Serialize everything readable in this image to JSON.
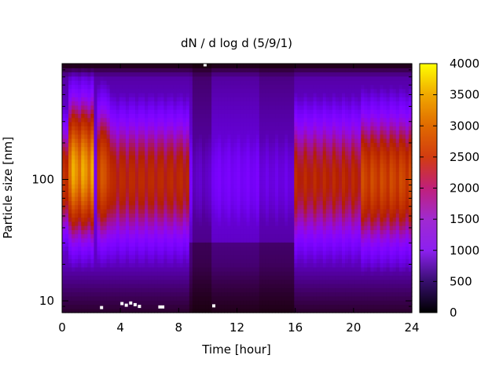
{
  "chart_data": {
    "type": "heatmap",
    "title": "dN / d log d (5/9/1)",
    "xlabel": "Time [hour]",
    "ylabel": "Particle size [nm]",
    "x_range": [
      0,
      24
    ],
    "x_ticks": [
      0,
      4,
      8,
      12,
      16,
      20,
      24
    ],
    "y_scale": "log",
    "y_range": [
      8,
      900
    ],
    "y_ticks": [
      10,
      100
    ],
    "color_range": [
      0,
      4000
    ],
    "color_ticks": [
      0,
      500,
      1000,
      1500,
      2000,
      2500,
      3000,
      3500,
      4000
    ],
    "colormap": "black-purple-red-orange-yellow (gnuplot default)",
    "grid": false,
    "features": [
      {
        "time_range": [
          0.4,
          2.2
        ],
        "peak_size_nm": 120,
        "peak_value": 3600
      },
      {
        "time_range": [
          2.3,
          3.2
        ],
        "peak_size_nm": 110,
        "peak_value": 2900
      },
      {
        "time_range": [
          3.2,
          8.7
        ],
        "peak_size_nm": 100,
        "peak_value": 2300
      },
      {
        "time_range": [
          8.7,
          16.0
        ],
        "peak_size_nm": 100,
        "peak_value": 1000
      },
      {
        "time_range": [
          16.0,
          20.5
        ],
        "peak_size_nm": 100,
        "peak_value": 2250
      },
      {
        "time_range": [
          20.5,
          24.0
        ],
        "peak_size_nm": 100,
        "peak_value": 2750
      }
    ]
  }
}
